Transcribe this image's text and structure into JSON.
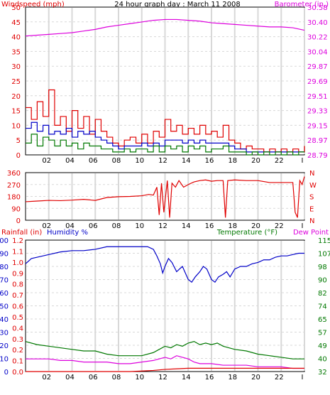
{
  "title": "24 hour graph day : March 11 2008",
  "colors": {
    "red": "#e00000",
    "magenta": "#dd00dd",
    "blue": "#0000c8",
    "green": "#007800",
    "grid": "#d8d8d8",
    "frame": "#000000"
  },
  "chart_data": [
    {
      "type": "line",
      "x_ticks": [
        "02",
        "04",
        "06",
        "08",
        "10",
        "12",
        "14",
        "16",
        "18",
        "20",
        "22",
        "I"
      ],
      "left_axis": {
        "label": "Windspeed (mph)",
        "ticks": [
          "0",
          "5",
          "10",
          "15",
          "20",
          "25",
          "30",
          "35",
          "40",
          "45",
          "50"
        ],
        "ylim": [
          0,
          50
        ]
      },
      "right_axis": {
        "label": "Barometer (in.)",
        "ticks": [
          "28.79",
          "28.97",
          "29.15",
          "29.33",
          "29.51",
          "29.69",
          "29.87",
          "30.04",
          "30.22",
          "30.40",
          "30.58"
        ],
        "ylim": [
          28.79,
          30.58
        ]
      },
      "series": [
        {
          "axis": "right",
          "color": "magenta",
          "x": [
            0,
            1,
            2,
            3,
            4,
            5,
            6,
            7,
            8,
            9,
            10,
            11,
            12,
            13,
            14,
            15,
            16,
            17,
            18,
            19,
            20,
            21,
            22,
            23,
            24
          ],
          "values": [
            30.23,
            30.24,
            30.25,
            30.26,
            30.27,
            30.29,
            30.31,
            30.34,
            30.36,
            30.38,
            30.4,
            30.42,
            30.43,
            30.43,
            30.42,
            30.41,
            30.39,
            30.38,
            30.37,
            30.36,
            30.35,
            30.34,
            30.34,
            30.33,
            30.3
          ]
        },
        {
          "axis": "left",
          "color": "red",
          "x": [
            0,
            0.5,
            1,
            1.5,
            2,
            2.5,
            3,
            3.5,
            4,
            4.5,
            5,
            5.5,
            6,
            6.5,
            7,
            7.5,
            8,
            8.5,
            9,
            9.5,
            10,
            10.5,
            11,
            11.5,
            12,
            12.5,
            13,
            13.5,
            14,
            14.5,
            15,
            15.5,
            16,
            16.5,
            17,
            17.5,
            18,
            18.5,
            19,
            19.5,
            20,
            20.5,
            21,
            21.5,
            22,
            22.5,
            23,
            23.5,
            24
          ],
          "values": [
            16,
            12,
            18,
            13,
            22,
            10,
            13,
            8,
            15,
            9,
            13,
            7,
            12,
            8,
            6,
            4,
            3,
            5,
            6,
            4,
            7,
            4,
            8,
            6,
            12,
            8,
            10,
            7,
            9,
            7,
            10,
            7,
            8,
            6,
            10,
            5,
            4,
            2,
            3,
            2,
            2,
            1,
            2,
            1,
            2,
            1,
            2,
            1,
            3
          ]
        },
        {
          "axis": "left",
          "color": "blue",
          "x": [
            0,
            0.5,
            1,
            1.5,
            2,
            2.5,
            3,
            3.5,
            4,
            4.5,
            5,
            5.5,
            6,
            6.5,
            7,
            7.5,
            8,
            8.5,
            9,
            9.5,
            10,
            10.5,
            11,
            11.5,
            12,
            12.5,
            13,
            13.5,
            14,
            14.5,
            15,
            15.5,
            16,
            16.5,
            17,
            17.5,
            18,
            18.5,
            19,
            19.5,
            20,
            20.5,
            21,
            21.5,
            22,
            22.5,
            23,
            23.5,
            24
          ],
          "values": [
            9,
            11,
            8,
            10,
            7,
            8,
            7,
            9,
            6,
            8,
            7,
            8,
            6,
            5,
            4,
            3,
            2,
            3,
            3,
            3,
            4,
            3,
            4,
            3,
            5,
            5,
            5,
            4,
            5,
            4,
            5,
            4,
            4,
            4,
            4,
            3,
            2,
            2,
            1,
            1,
            1,
            1,
            1,
            1,
            1,
            1,
            1,
            1,
            1
          ]
        },
        {
          "axis": "left",
          "color": "green",
          "x": [
            0,
            0.5,
            1,
            1.5,
            2,
            2.5,
            3,
            3.5,
            4,
            4.5,
            5,
            5.5,
            6,
            6.5,
            7,
            7.5,
            8,
            8.5,
            9,
            9.5,
            10,
            10.5,
            11,
            11.5,
            12,
            12.5,
            13,
            13.5,
            14,
            14.5,
            15,
            15.5,
            16,
            16.5,
            17,
            17.5,
            18,
            18.5,
            19,
            19.5,
            20,
            20.5,
            21,
            21.5,
            22,
            22.5,
            23,
            23.5,
            24
          ],
          "values": [
            4,
            7,
            3,
            6,
            5,
            3,
            5,
            3,
            4,
            2,
            4,
            3,
            3,
            2,
            2,
            1,
            1,
            2,
            1,
            2,
            2,
            1,
            3,
            1,
            3,
            2,
            3,
            1,
            3,
            2,
            3,
            1,
            2,
            2,
            3,
            1,
            1,
            1,
            0,
            1,
            0,
            1,
            0,
            1,
            0,
            1,
            0,
            1,
            1
          ]
        }
      ]
    },
    {
      "type": "line",
      "x_ticks": [
        "02",
        "04",
        "06",
        "08",
        "10",
        "12",
        "14",
        "16",
        "18",
        "20",
        "22",
        "I"
      ],
      "left_axis": {
        "label": "",
        "ticks": [
          "0",
          "90",
          "180",
          "270",
          "360"
        ],
        "ylim": [
          0,
          360
        ]
      },
      "right_axis": {
        "label": "",
        "ticks": [
          "N",
          "E",
          "S",
          "W",
          "N"
        ]
      },
      "series": [
        {
          "axis": "left",
          "color": "red",
          "x": [
            0,
            1,
            2,
            3,
            4,
            5,
            6,
            7,
            8,
            9,
            10,
            10.6,
            11,
            11.3,
            11.5,
            11.7,
            11.9,
            12.2,
            12.4,
            12.6,
            12.9,
            13.2,
            13.6,
            14,
            14.5,
            15,
            15.5,
            16,
            16.5,
            17,
            17.2,
            17.4,
            18,
            19,
            20,
            21,
            22,
            22.6,
            23,
            23.2,
            23.4,
            23.6,
            23.8,
            24
          ],
          "values": [
            140,
            145,
            150,
            148,
            152,
            158,
            150,
            172,
            178,
            180,
            185,
            195,
            190,
            250,
            40,
            280,
            60,
            300,
            20,
            280,
            250,
            300,
            250,
            270,
            290,
            300,
            305,
            295,
            300,
            300,
            20,
            300,
            305,
            300,
            300,
            285,
            285,
            285,
            285,
            60,
            20,
            300,
            270,
            330
          ]
        }
      ]
    },
    {
      "type": "line",
      "x_ticks": [
        "02",
        "04",
        "06",
        "08",
        "10",
        "12",
        "14",
        "16",
        "18",
        "20",
        "22",
        "I"
      ],
      "rainfall_axis": {
        "label": "Rainfall (in)",
        "ticks": [
          "0.0",
          "0.1",
          "0.2",
          "0.3",
          "0.4",
          "0.5",
          "0.6",
          "0.7",
          "0.8",
          "0.9",
          "1.0",
          "1.1",
          "1.2"
        ]
      },
      "humidity_axis": {
        "label": "Humidity %",
        "ticks": [
          "0",
          "10",
          "20",
          "30",
          "40",
          "50",
          "60",
          "70",
          "80",
          "90",
          "100"
        ],
        "ylim": [
          0,
          100
        ]
      },
      "temperature_axis": {
        "label": "Temperature (°F)",
        "label2": "Dew Point",
        "ticks": [
          "32",
          "40",
          "49",
          "57",
          "65",
          "74",
          "82",
          "90",
          "98",
          "107",
          "115"
        ],
        "ylim": [
          32,
          115
        ]
      },
      "series": [
        {
          "axis": "humidity",
          "color": "blue",
          "x": [
            0,
            0.5,
            1,
            2,
            3,
            4,
            5,
            6,
            7,
            8,
            9,
            10,
            10.5,
            11,
            11.3,
            11.6,
            11.8,
            12,
            12.3,
            12.6,
            13,
            13.5,
            14,
            14.3,
            14.6,
            15,
            15.3,
            15.6,
            16,
            16.3,
            16.6,
            17,
            17.3,
            17.6,
            18,
            18.5,
            19,
            19.5,
            20,
            20.5,
            21,
            21.5,
            22,
            22.5,
            23,
            23.5,
            24
          ],
          "values": [
            82,
            86,
            87,
            89,
            91,
            92,
            92,
            93,
            95,
            95,
            95,
            95,
            95,
            93,
            88,
            82,
            75,
            80,
            86,
            83,
            76,
            80,
            70,
            68,
            72,
            76,
            80,
            78,
            70,
            68,
            72,
            74,
            76,
            72,
            78,
            80,
            80,
            82,
            83,
            85,
            85,
            87,
            88,
            88,
            89,
            90,
            90
          ]
        },
        {
          "axis": "temperature",
          "color": "green",
          "x": [
            0,
            1,
            2,
            3,
            4,
            5,
            6,
            7,
            8,
            9,
            10,
            11,
            11.5,
            12,
            12.5,
            13,
            13.5,
            14,
            14.5,
            15,
            15.5,
            16,
            16.5,
            17,
            17.5,
            18,
            19,
            20,
            21,
            22,
            23,
            24
          ],
          "values": [
            51,
            49,
            48,
            47,
            46,
            45,
            45,
            43,
            42,
            42,
            42,
            44,
            46,
            48,
            47,
            49,
            48,
            50,
            51,
            49,
            50,
            49,
            50,
            48,
            47,
            46,
            45,
            43,
            42,
            41,
            40,
            40
          ]
        },
        {
          "axis": "temperature",
          "color": "magenta",
          "x": [
            0,
            1,
            2,
            3,
            4,
            5,
            6,
            7,
            8,
            9,
            10,
            11,
            11.5,
            12,
            12.5,
            13,
            13.5,
            14,
            14.5,
            15,
            16,
            17,
            18,
            19,
            20,
            21,
            22,
            23,
            24
          ],
          "values": [
            40,
            40,
            40,
            39,
            39,
            38,
            38,
            38,
            37,
            37,
            38,
            39,
            40,
            41,
            40,
            42,
            41,
            40,
            38,
            37,
            37,
            36,
            36,
            36,
            35,
            35,
            35,
            34,
            34
          ]
        },
        {
          "axis": "rainfall",
          "color": "red",
          "x": [
            0,
            9,
            10,
            11,
            12,
            13,
            14,
            16,
            18,
            20,
            22,
            24
          ],
          "values": [
            0.0,
            0.0,
            0.005,
            0.01,
            0.02,
            0.025,
            0.03,
            0.03,
            0.03,
            0.03,
            0.03,
            0.03
          ]
        }
      ]
    }
  ]
}
